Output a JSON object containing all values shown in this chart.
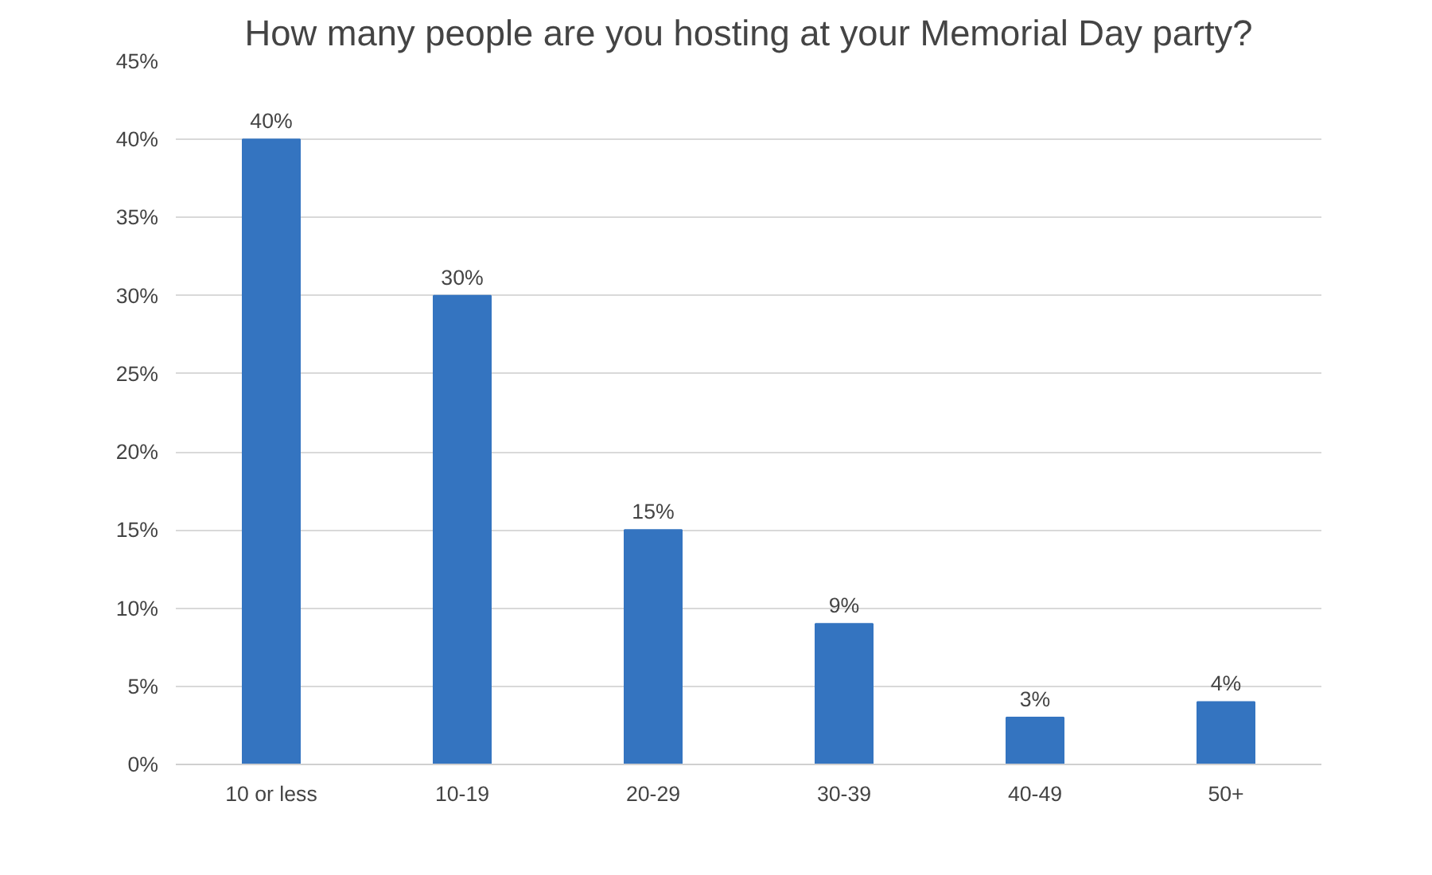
{
  "chart_data": {
    "type": "bar",
    "title": "How many people are you hosting at your Memorial Day party?",
    "categories": [
      "10 or less",
      "10-19",
      "20-29",
      "30-39",
      "40-49",
      "50+"
    ],
    "values": [
      40,
      30,
      15,
      9,
      3,
      4
    ],
    "value_labels": [
      "40%",
      "30%",
      "15%",
      "9%",
      "3%",
      "4%"
    ],
    "color": "#3474c0",
    "ylim": [
      0,
      45
    ],
    "yticks": [
      {
        "value": 0,
        "label": "0%"
      },
      {
        "value": 5,
        "label": "5%"
      },
      {
        "value": 10,
        "label": "10%"
      },
      {
        "value": 15,
        "label": "15%"
      },
      {
        "value": 20,
        "label": "20%"
      },
      {
        "value": 25,
        "label": "25%"
      },
      {
        "value": 30,
        "label": "30%"
      },
      {
        "value": 35,
        "label": "35%"
      },
      {
        "value": 40,
        "label": "40%"
      },
      {
        "value": 45,
        "label": "45%"
      }
    ],
    "grid": "y"
  }
}
